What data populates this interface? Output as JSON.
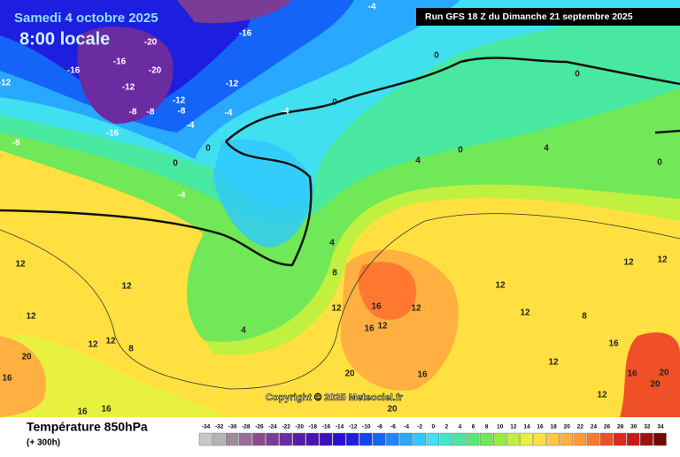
{
  "header": {
    "date": "Samedi 4 octobre 2025",
    "time": "8:00 locale",
    "run": "Run GFS 18 Z du Dimanche 21 septembre 2025"
  },
  "copyright": "Copyright © 2025 Meteociel.fr",
  "footer": {
    "title": "Température 850hPa",
    "subtitle": "(+ 300h)"
  },
  "legend": {
    "values": [
      -34,
      -32,
      -30,
      -28,
      -26,
      -24,
      -22,
      -20,
      -18,
      -16,
      -14,
      -12,
      -10,
      -8,
      -6,
      -4,
      -2,
      0,
      2,
      4,
      6,
      8,
      10,
      12,
      14,
      16,
      18,
      20,
      22,
      24,
      26,
      28,
      30,
      32,
      34
    ],
    "colors": [
      "#c8c8c8",
      "#b4b4b4",
      "#a08ca0",
      "#9a6a9a",
      "#8c4c8c",
      "#7a3c96",
      "#6a2ca0",
      "#5a1ca8",
      "#4a14b4",
      "#3c10c0",
      "#2c10d0",
      "#1e1ee0",
      "#1444f0",
      "#1464f8",
      "#1a88ff",
      "#28a8ff",
      "#30c8ff",
      "#40e0f0",
      "#40e8c8",
      "#48e8a0",
      "#58e878",
      "#70e858",
      "#98ec40",
      "#c0f040",
      "#e8f040",
      "#ffe040",
      "#ffc840",
      "#ffb040",
      "#ff9838",
      "#ff7830",
      "#f05028",
      "#e02820",
      "#c81818",
      "#a01010",
      "#700808"
    ]
  },
  "contour_labels": [
    -4,
    -20,
    -16,
    -16,
    -20,
    -12,
    -16,
    -12,
    -12,
    -12,
    -8,
    -8,
    -8,
    -4,
    -4,
    -16,
    -8,
    -4,
    0,
    0,
    0,
    0,
    4,
    4,
    0,
    0,
    0,
    -4,
    4,
    8,
    12,
    12,
    12,
    12,
    12,
    12,
    8,
    4,
    20,
    16,
    16,
    16,
    16,
    16,
    12,
    12,
    12,
    12,
    20,
    20,
    16,
    12,
    12,
    12,
    8,
    16,
    16,
    12,
    20,
    20
  ]
}
